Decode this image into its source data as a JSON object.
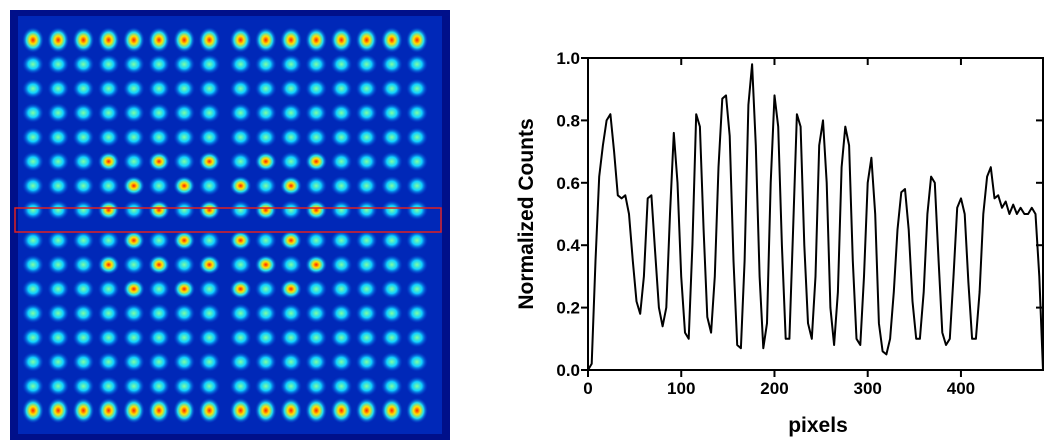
{
  "chart_data": {
    "type": "line",
    "x_label": "pixels",
    "y_label": "Normalized Counts",
    "xlim": [
      0,
      488
    ],
    "ylim": [
      0,
      1
    ],
    "xticks": [
      0,
      100,
      200,
      300,
      400
    ],
    "yticks": [
      {
        "value": 0,
        "label": "0.0"
      },
      {
        "value": 0.2,
        "label": "0.2"
      },
      {
        "value": 0.4,
        "label": "0.4"
      },
      {
        "value": 0.6,
        "label": "0.6"
      },
      {
        "value": 0.8,
        "label": "0.8"
      },
      {
        "value": 1,
        "label": "1.0"
      }
    ],
    "series": [
      {
        "color": "#000000",
        "x": [
          0,
          4,
          8,
          12,
          16,
          20,
          24,
          28,
          32,
          36,
          40,
          44,
          48,
          52,
          56,
          60,
          64,
          68,
          72,
          76,
          80,
          84,
          88,
          92,
          96,
          100,
          104,
          108,
          112,
          116,
          120,
          124,
          128,
          132,
          136,
          140,
          144,
          148,
          152,
          156,
          160,
          164,
          168,
          172,
          176,
          180,
          184,
          188,
          192,
          196,
          200,
          204,
          208,
          212,
          216,
          220,
          224,
          228,
          232,
          236,
          240,
          244,
          248,
          252,
          256,
          260,
          264,
          268,
          272,
          276,
          280,
          284,
          288,
          292,
          296,
          300,
          304,
          308,
          312,
          316,
          320,
          324,
          328,
          332,
          336,
          340,
          344,
          348,
          352,
          356,
          360,
          364,
          368,
          372,
          376,
          380,
          384,
          388,
          392,
          396,
          400,
          404,
          408,
          412,
          416,
          420,
          424,
          428,
          432,
          436,
          440,
          444,
          448,
          452,
          456,
          460,
          464,
          468,
          472,
          476,
          480,
          484,
          488
        ],
        "values": [
          0.0,
          0.02,
          0.35,
          0.62,
          0.72,
          0.8,
          0.82,
          0.7,
          0.56,
          0.55,
          0.56,
          0.5,
          0.35,
          0.22,
          0.18,
          0.3,
          0.55,
          0.56,
          0.38,
          0.2,
          0.14,
          0.2,
          0.5,
          0.76,
          0.6,
          0.3,
          0.12,
          0.1,
          0.4,
          0.82,
          0.78,
          0.45,
          0.17,
          0.12,
          0.3,
          0.65,
          0.87,
          0.88,
          0.75,
          0.35,
          0.08,
          0.07,
          0.35,
          0.85,
          0.98,
          0.72,
          0.3,
          0.07,
          0.15,
          0.6,
          0.88,
          0.78,
          0.4,
          0.1,
          0.1,
          0.45,
          0.82,
          0.78,
          0.4,
          0.15,
          0.1,
          0.3,
          0.72,
          0.8,
          0.6,
          0.2,
          0.08,
          0.25,
          0.65,
          0.78,
          0.72,
          0.35,
          0.1,
          0.08,
          0.3,
          0.6,
          0.68,
          0.5,
          0.15,
          0.06,
          0.05,
          0.1,
          0.25,
          0.45,
          0.57,
          0.58,
          0.45,
          0.22,
          0.1,
          0.1,
          0.25,
          0.5,
          0.62,
          0.6,
          0.35,
          0.12,
          0.08,
          0.1,
          0.3,
          0.52,
          0.55,
          0.5,
          0.28,
          0.1,
          0.1,
          0.25,
          0.5,
          0.62,
          0.65,
          0.55,
          0.56,
          0.52,
          0.54,
          0.5,
          0.53,
          0.5,
          0.52,
          0.5,
          0.5,
          0.52,
          0.5,
          0.3,
          0.0
        ]
      }
    ]
  }
}
